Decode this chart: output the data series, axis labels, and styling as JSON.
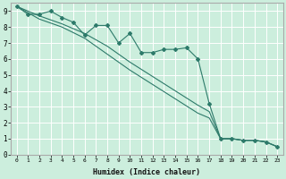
{
  "xlabel": "Humidex (Indice chaleur)",
  "bg_color": "#cceedd",
  "grid_color": "#ffffff",
  "line_color": "#2d7a6a",
  "xlim": [
    -0.5,
    23.5
  ],
  "ylim": [
    0,
    9.5
  ],
  "xticks": [
    0,
    1,
    2,
    3,
    4,
    5,
    6,
    7,
    8,
    9,
    10,
    11,
    12,
    13,
    14,
    15,
    16,
    17,
    18,
    19,
    20,
    21,
    22,
    23
  ],
  "yticks": [
    0,
    1,
    2,
    3,
    4,
    5,
    6,
    7,
    8,
    9
  ],
  "line1_x": [
    0,
    1,
    2,
    3,
    4,
    5,
    6,
    7,
    8,
    9,
    10,
    11,
    12,
    13,
    14,
    15,
    16,
    17,
    18,
    19,
    20,
    21,
    22,
    23
  ],
  "line1_y": [
    9.3,
    8.8,
    8.8,
    9.0,
    8.6,
    8.3,
    7.5,
    8.1,
    8.1,
    7.0,
    7.6,
    6.4,
    6.4,
    6.6,
    6.6,
    6.7,
    6.0,
    3.2,
    1.0,
    1.0,
    0.9,
    0.9,
    0.8,
    0.5
  ],
  "line2_x": [
    0,
    2,
    4,
    6,
    8,
    10,
    12,
    14,
    16,
    17,
    18,
    19,
    20,
    21,
    22,
    23
  ],
  "line2_y": [
    9.3,
    8.7,
    8.2,
    7.6,
    6.8,
    5.8,
    4.9,
    4.0,
    3.1,
    2.7,
    1.0,
    1.0,
    0.9,
    0.9,
    0.8,
    0.5
  ],
  "line3_x": [
    0,
    2,
    4,
    6,
    8,
    10,
    12,
    14,
    16,
    17,
    18,
    19,
    20,
    21,
    22,
    23
  ],
  "line3_y": [
    9.3,
    8.5,
    8.0,
    7.3,
    6.3,
    5.3,
    4.4,
    3.5,
    2.6,
    2.3,
    1.0,
    1.0,
    0.9,
    0.9,
    0.8,
    0.5
  ]
}
